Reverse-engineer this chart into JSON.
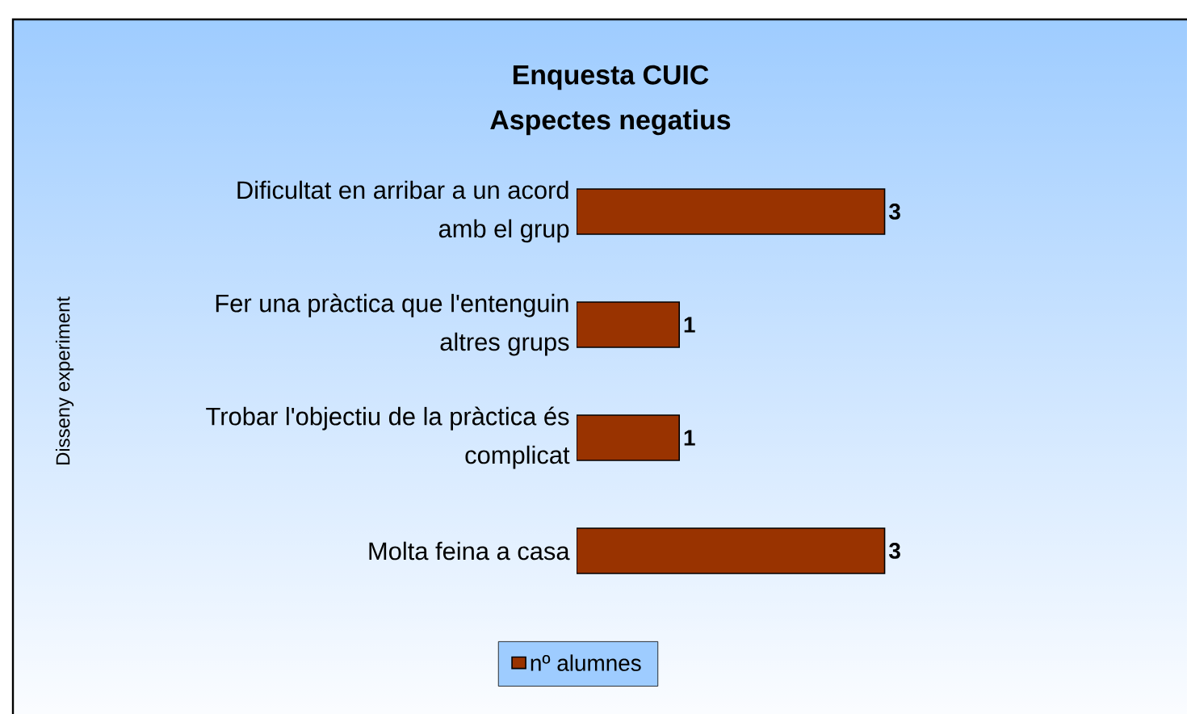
{
  "chart_data": {
    "type": "bar",
    "orientation": "horizontal",
    "title": "Enquesta CUIC\nAspectes negatius",
    "annotations": [
      "Disseny experiment"
    ],
    "categories": [
      "Dificultat en arribar a un acord amb el grup",
      "Fer una pràctica que l'entenguin altres grups",
      "Trobar l'objectiu de la pràctica és complicat",
      "Molta feina a casa"
    ],
    "series": [
      {
        "name": "nº alumnes",
        "color": "#993300",
        "values": [
          3,
          1,
          1,
          3
        ]
      }
    ],
    "data_labels": true,
    "legend": "bottom"
  }
}
